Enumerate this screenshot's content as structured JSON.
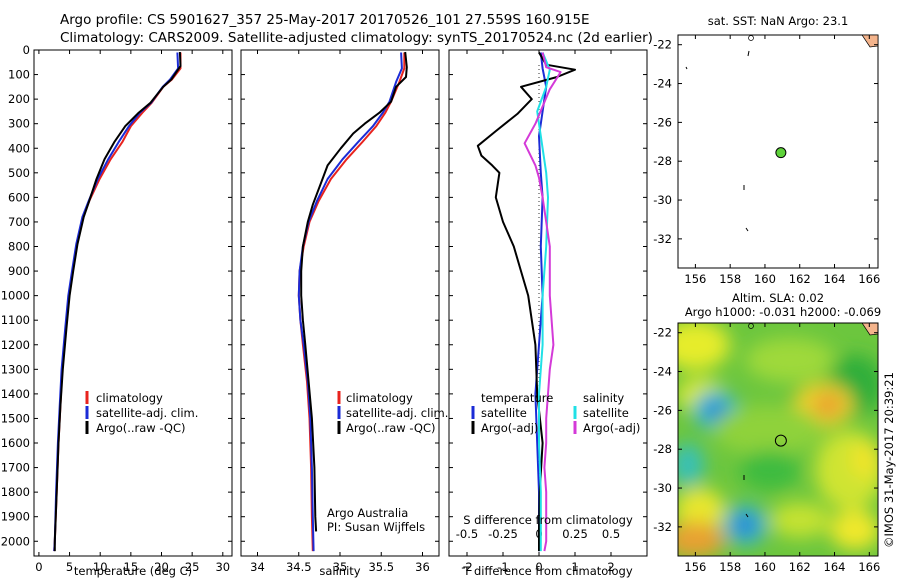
{
  "figure": {
    "title_line1": "Argo profile: CS 5901627_357 25-May-2017 20170526_101 27.559S 160.915E",
    "title_line2": "Climatology: CARS2009. Satellite-adjusted climatology: synTS_20170524.nc (2d earlier)",
    "side_label": "©IMOS 31-May-2017 20:39:21",
    "credit_line1": "Argo Australia",
    "credit_line2": "PI: Susan Wijffels",
    "colors": {
      "climatology": "#e8231e",
      "satellite": "#1b2bd6",
      "argo": "#000000",
      "satellite_diff": "#20e0e6",
      "argo_diff": "#d43ad8",
      "land": "#f4b48c"
    }
  },
  "chart_data": [
    {
      "id": "temperature",
      "type": "line",
      "xlabel": "temperature (deg C)",
      "xlim": [
        -0.8,
        31.5
      ],
      "xticks": [
        0,
        5,
        10,
        15,
        20,
        25,
        30
      ],
      "ylim": [
        2060,
        0
      ],
      "yticks": [
        0,
        100,
        200,
        300,
        400,
        500,
        600,
        700,
        800,
        900,
        1000,
        1100,
        1200,
        1300,
        1400,
        1500,
        1600,
        1700,
        1800,
        1900,
        2000
      ],
      "legend": [
        "climatology",
        "satellite-adj. clim.",
        "Argo(..raw -QC)"
      ],
      "series": [
        {
          "name": "climatology",
          "color": "#e8231e",
          "points": [
            [
              23.1,
              10
            ],
            [
              23.1,
              75
            ],
            [
              21.7,
              120
            ],
            [
              20.3,
              150
            ],
            [
              18.4,
              215
            ],
            [
              16.9,
              255
            ],
            [
              15,
              310
            ],
            [
              13.6,
              375
            ],
            [
              11.7,
              445
            ],
            [
              9.9,
              525
            ],
            [
              8.2,
              615
            ],
            [
              7.2,
              680
            ],
            [
              6.2,
              790
            ],
            [
              5.5,
              900
            ],
            [
              4.9,
              1000
            ],
            [
              4.4,
              1130
            ],
            [
              3.8,
              1300
            ],
            [
              3.5,
              1450
            ],
            [
              3.2,
              1600
            ],
            [
              2.9,
              1800
            ],
            [
              2.6,
              2000
            ],
            [
              2.5,
              2040
            ]
          ]
        },
        {
          "name": "satellite-adj. clim.",
          "color": "#1b2bd6",
          "points": [
            [
              22.6,
              10
            ],
            [
              22.7,
              75
            ],
            [
              21.4,
              120
            ],
            [
              20.2,
              150
            ],
            [
              18.3,
              215
            ],
            [
              16.5,
              255
            ],
            [
              14.7,
              310
            ],
            [
              13,
              375
            ],
            [
              11.3,
              445
            ],
            [
              9.6,
              525
            ],
            [
              8.1,
              615
            ],
            [
              7.1,
              680
            ],
            [
              6.1,
              790
            ],
            [
              5.4,
              900
            ],
            [
              4.8,
              1000
            ],
            [
              4.3,
              1130
            ],
            [
              3.7,
              1300
            ],
            [
              3.4,
              1450
            ],
            [
              3.1,
              1600
            ],
            [
              2.8,
              1800
            ],
            [
              2.6,
              2000
            ],
            [
              2.5,
              2040
            ]
          ]
        },
        {
          "name": "Argo(..raw -QC)",
          "color": "#000000",
          "points": [
            [
              23,
              8
            ],
            [
              23.1,
              65
            ],
            [
              21.6,
              120
            ],
            [
              20.3,
              150
            ],
            [
              18.2,
              215
            ],
            [
              16.3,
              255
            ],
            [
              14.1,
              310
            ],
            [
              12.3,
              375
            ],
            [
              10.7,
              445
            ],
            [
              9.4,
              525
            ],
            [
              8.2,
              615
            ],
            [
              7.3,
              680
            ],
            [
              6.3,
              790
            ],
            [
              5.6,
              900
            ],
            [
              5,
              1000
            ],
            [
              4.5,
              1130
            ],
            [
              3.9,
              1300
            ],
            [
              3.5,
              1450
            ],
            [
              3.2,
              1600
            ],
            [
              2.9,
              1800
            ],
            [
              2.6,
              2000
            ],
            [
              2.6,
              2040
            ]
          ]
        }
      ]
    },
    {
      "id": "salinity",
      "type": "line",
      "xlabel": "salinity",
      "xlim": [
        33.8,
        36.2
      ],
      "xticks": [
        34,
        34.5,
        35,
        35.5,
        36
      ],
      "xticklabels": [
        "34",
        "34.5",
        "35",
        "35.5",
        "36"
      ],
      "ylim": [
        2060,
        0
      ],
      "legend": [
        "climatology",
        "satellite-adj. clim.",
        "Argo(..raw -QC)"
      ],
      "series": [
        {
          "name": "climatology",
          "color": "#e8231e",
          "points": [
            [
              35.78,
              10
            ],
            [
              35.78,
              75
            ],
            [
              35.72,
              130
            ],
            [
              35.62,
              210
            ],
            [
              35.55,
              255
            ],
            [
              35.44,
              310
            ],
            [
              35.27,
              375
            ],
            [
              35.08,
              445
            ],
            [
              34.89,
              525
            ],
            [
              34.74,
              615
            ],
            [
              34.63,
              700
            ],
            [
              34.56,
              800
            ],
            [
              34.51,
              900
            ],
            [
              34.5,
              1000
            ],
            [
              34.52,
              1100
            ],
            [
              34.55,
              1200
            ],
            [
              34.6,
              1350
            ],
            [
              34.63,
              1500
            ],
            [
              34.65,
              1700
            ],
            [
              34.66,
              1900
            ],
            [
              34.67,
              2040
            ]
          ]
        },
        {
          "name": "satellite-adj. clim.",
          "color": "#1b2bd6",
          "points": [
            [
              35.74,
              10
            ],
            [
              35.75,
              75
            ],
            [
              35.68,
              130
            ],
            [
              35.6,
              210
            ],
            [
              35.52,
              255
            ],
            [
              35.4,
              310
            ],
            [
              35.22,
              375
            ],
            [
              35.03,
              445
            ],
            [
              34.85,
              525
            ],
            [
              34.72,
              615
            ],
            [
              34.62,
              700
            ],
            [
              34.55,
              800
            ],
            [
              34.51,
              900
            ],
            [
              34.5,
              1000
            ],
            [
              34.52,
              1100
            ],
            [
              34.56,
              1200
            ],
            [
              34.61,
              1350
            ],
            [
              34.64,
              1500
            ],
            [
              34.66,
              1700
            ],
            [
              34.67,
              1900
            ],
            [
              34.68,
              2040
            ]
          ]
        },
        {
          "name": "Argo(..raw -QC)",
          "color": "#000000",
          "points": [
            [
              35.79,
              8
            ],
            [
              35.81,
              70
            ],
            [
              35.8,
              110
            ],
            [
              35.68,
              150
            ],
            [
              35.62,
              210
            ],
            [
              35.48,
              255
            ],
            [
              35.3,
              300
            ],
            [
              35.16,
              340
            ],
            [
              35.01,
              400
            ],
            [
              34.85,
              470
            ],
            [
              34.76,
              550
            ],
            [
              34.67,
              630
            ],
            [
              34.61,
              700
            ],
            [
              34.55,
              800
            ],
            [
              34.53,
              900
            ],
            [
              34.53,
              1000
            ],
            [
              34.55,
              1100
            ],
            [
              34.58,
              1200
            ],
            [
              34.62,
              1350
            ],
            [
              34.66,
              1500
            ],
            [
              34.69,
              1700
            ],
            [
              34.7,
              1900
            ],
            [
              34.71,
              1960
            ]
          ]
        }
      ]
    },
    {
      "id": "difference",
      "type": "line",
      "xlabel": "T difference from climatology",
      "xlabel2": "S difference from climatology",
      "xlim": [
        -2.5,
        3
      ],
      "xticks": [
        -2,
        -1,
        0,
        1,
        2
      ],
      "secondary_xticks": [
        -0.5,
        -0.25,
        0,
        0.25,
        0.5
      ],
      "secondary_xticklabels": [
        "-0.5",
        "-0.25",
        "0",
        "0.25",
        "0.5"
      ],
      "ylim": [
        2060,
        0
      ],
      "legend_temperature_title": "temperature",
      "legend_salinity_title": "salinity",
      "legend": [
        "satellite",
        "Argo(-adj)",
        "satellite",
        "Argo(-adj)"
      ],
      "series": [
        {
          "name": "satellite",
          "color": "#1b2bd6",
          "points": [
            [
              0.05,
              10
            ],
            [
              0.1,
              75
            ],
            [
              0.2,
              150
            ],
            [
              0.1,
              250
            ],
            [
              0,
              350
            ],
            [
              0.05,
              500
            ],
            [
              0.1,
              600
            ],
            [
              0.05,
              800
            ],
            [
              0.1,
              1000
            ],
            [
              0,
              1200
            ],
            [
              -0.1,
              1400
            ],
            [
              -0.05,
              1600
            ],
            [
              0,
              1800
            ],
            [
              0,
              2040
            ]
          ]
        },
        {
          "name": "Argo(-adj)",
          "color": "#000000",
          "points": [
            [
              0,
              10
            ],
            [
              0.2,
              60
            ],
            [
              1,
              80
            ],
            [
              0.5,
              110
            ],
            [
              -0.5,
              150
            ],
            [
              -0.2,
              200
            ],
            [
              -0.6,
              260
            ],
            [
              -1.2,
              330
            ],
            [
              -1.7,
              390
            ],
            [
              -1.6,
              430
            ],
            [
              -1.3,
              470
            ],
            [
              -1.1,
              500
            ],
            [
              -1.2,
              600
            ],
            [
              -1,
              700
            ],
            [
              -0.7,
              800
            ],
            [
              -0.5,
              900
            ],
            [
              -0.3,
              1000
            ],
            [
              -0.1,
              1200
            ],
            [
              -0.05,
              1400
            ],
            [
              0.1,
              1600
            ],
            [
              0.02,
              1800
            ],
            [
              0,
              1950
            ],
            [
              0,
              2040
            ]
          ]
        },
        {
          "name": "satellite",
          "color": "#20e0e6",
          "points": [
            [
              0.1,
              10
            ],
            [
              0.3,
              80
            ],
            [
              0.2,
              150
            ],
            [
              -0.05,
              250
            ],
            [
              0.05,
              350
            ],
            [
              0.2,
              500
            ],
            [
              0.25,
              600
            ],
            [
              0.2,
              800
            ],
            [
              0.1,
              1000
            ],
            [
              0.1,
              1200
            ],
            [
              0,
              1400
            ],
            [
              0,
              1600
            ],
            [
              0.05,
              1800
            ],
            [
              0.05,
              2040
            ]
          ]
        },
        {
          "name": "Argo(-adj)",
          "color": "#d43ad8",
          "points": [
            [
              0.1,
              10
            ],
            [
              0.2,
              70
            ],
            [
              0.6,
              90
            ],
            [
              0.3,
              160
            ],
            [
              0.1,
              230
            ],
            [
              -0.1,
              300
            ],
            [
              -0.4,
              380
            ],
            [
              -0.1,
              470
            ],
            [
              0,
              520
            ],
            [
              0.1,
              600
            ],
            [
              0.2,
              700
            ],
            [
              0.3,
              800
            ],
            [
              0.3,
              900
            ],
            [
              0.3,
              1000
            ],
            [
              0.35,
              1100
            ],
            [
              0.4,
              1200
            ],
            [
              0.3,
              1300
            ],
            [
              0.25,
              1400
            ],
            [
              0.2,
              1500
            ],
            [
              0.2,
              1600
            ],
            [
              0.15,
              1700
            ],
            [
              0.2,
              1800
            ],
            [
              0.2,
              1900
            ],
            [
              0.2,
              2000
            ],
            [
              0.15,
              2040
            ]
          ]
        }
      ]
    },
    {
      "id": "sst_map",
      "type": "scatter",
      "title": "sat. SST: NaN Argo: 23.1",
      "xlim": [
        155,
        166.5
      ],
      "ylim": [
        -33.5,
        -21.5
      ],
      "xticks": [
        156,
        158,
        160,
        162,
        164,
        166
      ],
      "yticks": [
        -22,
        -24,
        -26,
        -28,
        -30,
        -32
      ],
      "points": [
        {
          "x": 160.915,
          "y": -27.559
        }
      ]
    },
    {
      "id": "sla_map",
      "type": "heatmap",
      "title_line1": "Altim. SLA: 0.02",
      "title_line2": "Argo h1000: -0.031 h2000: -0.069",
      "xlim": [
        155,
        166.5
      ],
      "ylim": [
        -33.5,
        -21.5
      ],
      "xticks": [
        156,
        158,
        160,
        162,
        164,
        166
      ],
      "yticks": [
        -22,
        -24,
        -26,
        -28,
        -30,
        -32
      ],
      "points": [
        {
          "x": 160.915,
          "y": -27.559
        }
      ]
    }
  ]
}
